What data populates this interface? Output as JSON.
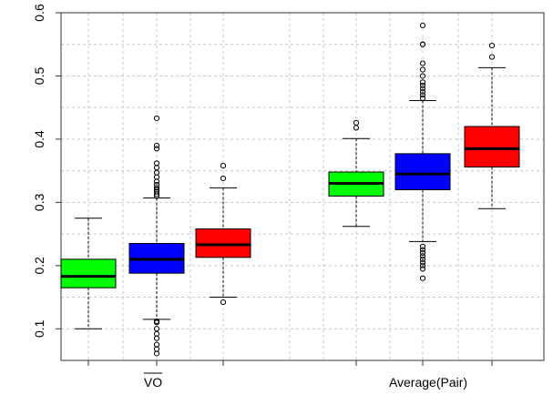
{
  "chart_data": {
    "type": "boxplot",
    "title": "",
    "xlabel": "",
    "ylabel": "",
    "ylim": [
      0.05,
      0.6
    ],
    "y_ticks": [
      "0.1",
      "0.2",
      "0.3",
      "0.4",
      "0.5",
      "0.6"
    ],
    "grid": true,
    "groups": [
      {
        "label": "VO",
        "label_overline": true,
        "boxes": [
          {
            "color": "#00ff00",
            "whisker_low": 0.1,
            "q1": 0.165,
            "median": 0.183,
            "q3": 0.21,
            "whisker_high": 0.275,
            "outliers": []
          },
          {
            "color": "#0000ff",
            "whisker_low": 0.115,
            "q1": 0.188,
            "median": 0.21,
            "q3": 0.235,
            "whisker_high": 0.307,
            "outliers": [
              0.061,
              0.068,
              0.075,
              0.085,
              0.092,
              0.1,
              0.11,
              0.112,
              0.31,
              0.313,
              0.317,
              0.32,
              0.323,
              0.328,
              0.333,
              0.34,
              0.347,
              0.355,
              0.362,
              0.385,
              0.39,
              0.433
            ]
          },
          {
            "color": "#ff0000",
            "whisker_low": 0.15,
            "q1": 0.213,
            "median": 0.233,
            "q3": 0.258,
            "whisker_high": 0.323,
            "outliers": [
              0.142,
              0.338,
              0.358
            ]
          }
        ]
      },
      {
        "label": "Average(Pair)",
        "label_overline": false,
        "boxes": [
          {
            "color": "#00ff00",
            "whisker_low": 0.262,
            "q1": 0.31,
            "median": 0.33,
            "q3": 0.348,
            "whisker_high": 0.401,
            "outliers": [
              0.418,
              0.426
            ]
          },
          {
            "color": "#0000ff",
            "whisker_low": 0.238,
            "q1": 0.32,
            "median": 0.345,
            "q3": 0.377,
            "whisker_high": 0.461,
            "outliers": [
              0.18,
              0.195,
              0.2,
              0.205,
              0.21,
              0.215,
              0.22,
              0.225,
              0.23,
              0.465,
              0.47,
              0.475,
              0.48,
              0.485,
              0.49,
              0.5,
              0.51,
              0.52,
              0.55,
              0.55,
              0.58
            ]
          },
          {
            "color": "#ff0000",
            "whisker_low": 0.29,
            "q1": 0.356,
            "median": 0.385,
            "q3": 0.42,
            "whisker_high": 0.513,
            "outliers": [
              0.53,
              0.548
            ]
          }
        ]
      }
    ]
  }
}
